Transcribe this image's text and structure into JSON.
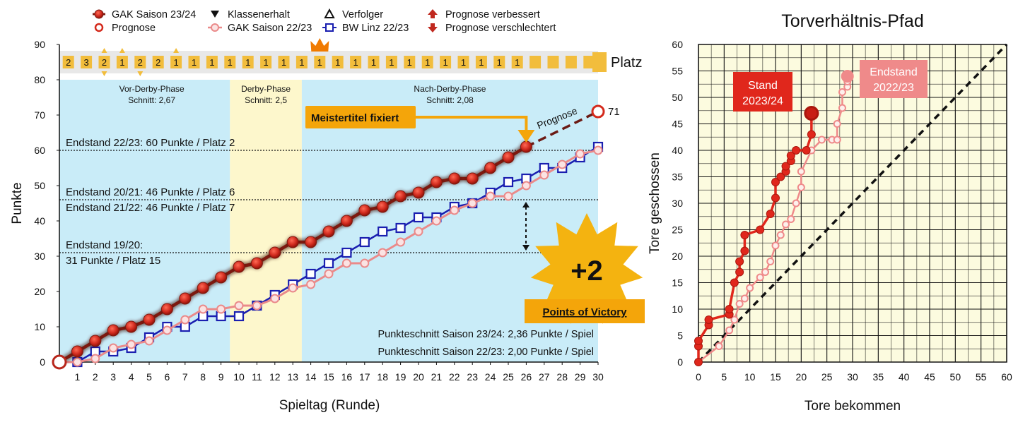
{
  "chart_data": [
    {
      "type": "line",
      "title": "",
      "xlabel": "Spieltag (Runde)",
      "ylabel": "Punkte",
      "xlim": [
        0,
        30
      ],
      "ylim": [
        0,
        90
      ],
      "x_ticks": [
        "1",
        "2",
        "3",
        "4",
        "5",
        "6",
        "7",
        "8",
        "9",
        "10",
        "11",
        "12",
        "13",
        "14",
        "15",
        "16",
        "17",
        "18",
        "19",
        "20",
        "21",
        "22",
        "23",
        "24",
        "25",
        "26",
        "27",
        "28",
        "29",
        "30"
      ],
      "y_ticks": [
        "0",
        "10",
        "20",
        "30",
        "40",
        "50",
        "60",
        "70",
        "80",
        "90"
      ],
      "legend": {
        "placement": "top",
        "items": [
          {
            "label": "GAK Saison 23/24",
            "symbol": "filled-circle",
            "color": "#c0281e"
          },
          {
            "label": "Prognose",
            "symbol": "open-circle",
            "color": "#d42a1c"
          },
          {
            "label": "Klassenerhalt",
            "symbol": "triangle-down",
            "color": "#111111"
          },
          {
            "label": "GAK Saison 22/23",
            "symbol": "open-circle-line",
            "color": "#ea8a8a"
          },
          {
            "label": "Verfolger",
            "symbol": "triangle-up",
            "color": "#111111"
          },
          {
            "label": "BW Linz 22/23",
            "symbol": "open-square",
            "color": "#1a1fb0"
          },
          {
            "label": "Prognose verbessert",
            "symbol": "arrow-up",
            "color": "#c0281e"
          },
          {
            "label": "Prognose verschlechtert",
            "symbol": "arrow-down",
            "color": "#c0281e"
          }
        ]
      },
      "series": [
        {
          "name": "GAK Saison 23/24",
          "color": "#c0281e",
          "x": [
            0,
            1,
            2,
            3,
            4,
            5,
            6,
            7,
            8,
            9,
            10,
            11,
            12,
            13,
            14,
            15,
            16,
            17,
            18,
            19,
            20,
            21,
            22,
            23,
            24,
            25,
            26
          ],
          "values": [
            0,
            3,
            6,
            9,
            10,
            12,
            15,
            18,
            21,
            24,
            27,
            28,
            31,
            34,
            34,
            37,
            40,
            43,
            44,
            47,
            48,
            51,
            52,
            52,
            55,
            58,
            61
          ]
        },
        {
          "name": "GAK Saison 22/23",
          "color": "#ea8a8a",
          "x": [
            0,
            1,
            2,
            3,
            4,
            5,
            6,
            7,
            8,
            9,
            10,
            11,
            12,
            13,
            14,
            15,
            16,
            17,
            18,
            19,
            20,
            21,
            22,
            23,
            24,
            25,
            26,
            27,
            28,
            29,
            30
          ],
          "values": [
            0,
            0,
            1,
            4,
            5,
            6,
            9,
            12,
            15,
            15,
            16,
            16,
            18,
            21,
            22,
            25,
            28,
            28,
            31,
            34,
            37,
            40,
            43,
            45,
            47,
            47,
            50,
            53,
            56,
            59,
            60
          ]
        },
        {
          "name": "BW Linz 22/23",
          "color": "#1a1fb0",
          "x": [
            0,
            1,
            2,
            3,
            4,
            5,
            6,
            7,
            8,
            9,
            10,
            11,
            12,
            13,
            14,
            15,
            16,
            17,
            18,
            19,
            20,
            21,
            22,
            23,
            24,
            25,
            26,
            27,
            28,
            29,
            30
          ],
          "values": [
            0,
            0,
            3,
            3,
            4,
            7,
            10,
            10,
            13,
            13,
            13,
            16,
            19,
            22,
            25,
            28,
            31,
            34,
            37,
            38,
            41,
            41,
            44,
            45,
            48,
            51,
            52,
            55,
            55,
            58,
            61
          ]
        }
      ],
      "prognose": {
        "label": "Prognose",
        "from": [
          26,
          61
        ],
        "to": [
          30,
          71
        ],
        "end_label": "71"
      },
      "platz": {
        "label": "Platz",
        "values": [
          "2",
          "3",
          "2",
          "1",
          "2",
          "2",
          "1",
          "1",
          "1",
          "1",
          "1",
          "1",
          "1",
          "1",
          "1",
          "1",
          "1",
          "1",
          "1",
          "1",
          "1",
          "1",
          "1",
          "1",
          "1",
          "1"
        ],
        "arrows_up": [
          3,
          4,
          7
        ],
        "arrows_down": [
          3,
          5
        ],
        "crown_round": 15
      },
      "phases": [
        {
          "name": "Vor-Derby-Phase",
          "avg": "Schnitt: 2,67",
          "from": 0,
          "to": 9.5,
          "color": "#c9ecf8"
        },
        {
          "name": "Derby-Phase",
          "avg": "Schnitt: 2,5",
          "from": 9.5,
          "to": 13.5,
          "color": "#fdf7cc"
        },
        {
          "name": "Nach-Derby-Phase",
          "avg": "Schnitt: 2,08",
          "from": 13.5,
          "to": 30,
          "color": "#c9ecf8"
        }
      ],
      "reference_lines": [
        {
          "y": 60,
          "labels": [
            "Endstand 22/23: 60 Punkte / Platz 2"
          ]
        },
        {
          "y": 46,
          "labels": [
            "Endstand 20/21: 46 Punkte / Platz 6",
            "Endstand 21/22: 46 Punkte / Platz 7"
          ]
        },
        {
          "y": 31,
          "labels": [
            "Endstand 19/20:",
            "31 Punkte / Platz 15"
          ]
        }
      ],
      "annotations": {
        "meistertitel": "Meistertitel fixiert",
        "victory_value": "+2",
        "victory_label": "Points of Victory",
        "avg_2324": "Punkteschnitt Saison 23/24: 2,36 Punkte / Spiel",
        "avg_2223": "Punkteschnitt Saison 22/23: 2,00 Punkte / Spiel"
      },
      "colors": {
        "blue_bg": "#c9ecf8",
        "yellow_bg": "#fdf7cc",
        "orange": "#f0a000",
        "gak": "#c0281e"
      }
    },
    {
      "type": "line",
      "title": "Torverhältnis-Pfad",
      "xlabel": "Tore  bekommen",
      "ylabel": "Tore geschossen",
      "xlim": [
        0,
        60
      ],
      "ylim": [
        0,
        60
      ],
      "x_ticks": [
        "0",
        "5",
        "10",
        "15",
        "20",
        "25",
        "30",
        "35",
        "40",
        "45",
        "50",
        "55",
        "60"
      ],
      "y_ticks": [
        "0",
        "5",
        "10",
        "15",
        "20",
        "25",
        "30",
        "35",
        "40",
        "45",
        "50",
        "55",
        "60"
      ],
      "grid": true,
      "background": "#fcfbdf",
      "series": [
        {
          "name": "Stand 2023/24",
          "color": "#e0271c",
          "x": [
            0,
            0,
            0,
            2,
            2,
            6,
            6,
            7,
            8,
            8,
            9,
            9,
            12,
            14,
            15,
            15,
            16,
            17,
            17,
            18,
            18,
            19,
            21,
            22,
            22
          ],
          "values": [
            0,
            3,
            4,
            7,
            8,
            9,
            10,
            15,
            17,
            19,
            21,
            24,
            25,
            28,
            31,
            34,
            35,
            36,
            37,
            38,
            39,
            40,
            40,
            43,
            47
          ]
        },
        {
          "name": "Endstand 2022/23",
          "color": "#ef8a8a",
          "x": [
            0,
            4,
            6,
            7,
            8,
            9,
            10,
            12,
            13,
            14,
            15,
            16,
            17,
            18,
            19,
            20,
            20,
            22,
            24,
            26,
            27,
            27,
            28,
            28,
            29,
            29,
            29
          ],
          "values": [
            0,
            3,
            6,
            8,
            11,
            12,
            14,
            16,
            17,
            19,
            22,
            24,
            26,
            27,
            30,
            33,
            36,
            40,
            42,
            42,
            42,
            45,
            48,
            51,
            52,
            53,
            54
          ]
        }
      ],
      "diagonal": {
        "from": [
          0,
          0
        ],
        "to": [
          60,
          60
        ]
      },
      "callouts": [
        {
          "lines": [
            "Stand",
            "2023/24"
          ],
          "color": "#e0271c"
        },
        {
          "lines": [
            "Endstand",
            "2022/23"
          ],
          "color": "#ef8a8a"
        }
      ]
    }
  ]
}
